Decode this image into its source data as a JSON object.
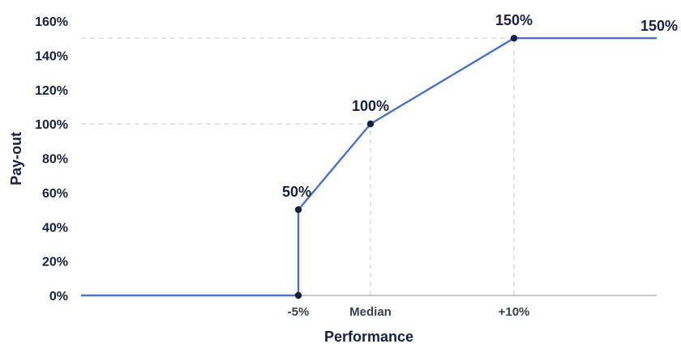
{
  "chart_data": {
    "type": "line",
    "xlabel": "Performance",
    "ylabel": "Pay-out",
    "ylim": [
      0,
      160
    ],
    "y_ticks": [
      "0%",
      "20%",
      "40%",
      "60%",
      "80%",
      "100%",
      "120%",
      "140%",
      "160%"
    ],
    "x_ticks": [
      {
        "label": "-5%",
        "x": -5
      },
      {
        "label": "Median",
        "x": 0
      },
      {
        "label": "+10%",
        "x": 10
      }
    ],
    "xlim": [
      -20,
      20
    ],
    "grid": false,
    "legend": "none",
    "series": [
      {
        "color": "#4a72c4",
        "x": [
          -20,
          -5,
          -5,
          0,
          10,
          20
        ],
        "y": [
          0,
          0,
          50,
          100,
          150,
          150
        ]
      }
    ],
    "markers": [
      {
        "x": -5,
        "y": 0
      },
      {
        "x": -5,
        "y": 50
      },
      {
        "x": 0,
        "y": 100
      },
      {
        "x": 10,
        "y": 150
      }
    ],
    "data_labels": [
      {
        "x": -5,
        "y": 50,
        "text": "50%"
      },
      {
        "x": 0,
        "y": 100,
        "text": "100%"
      },
      {
        "x": 10,
        "y": 150,
        "text": "150%"
      },
      {
        "x": 20,
        "y": 150,
        "text": "150%"
      }
    ],
    "reference_lines": [
      {
        "kind": "horizontal",
        "y": 100,
        "x_to": 0
      },
      {
        "kind": "horizontal",
        "y": 150,
        "x_to": 10
      },
      {
        "kind": "vertical",
        "x": 0,
        "y_to": 100
      },
      {
        "kind": "vertical",
        "x": 10,
        "y_to": 150
      }
    ],
    "colors": {
      "line": "#4a72c4",
      "marker": "#17213f",
      "text": "#17213f",
      "guide": "#d3d3d3"
    }
  }
}
